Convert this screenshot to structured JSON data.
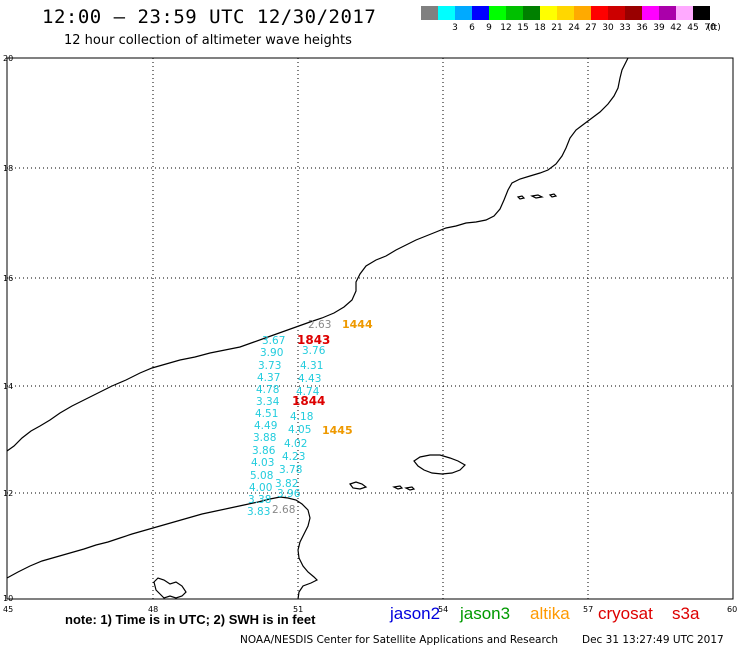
{
  "header": {
    "title": "12:00 — 23:59 UTC 12/30/2017",
    "subtitle": "12 hour collection of altimeter wave heights"
  },
  "legend": {
    "unit": "(ft)",
    "items": [
      {
        "label": "",
        "color": "#808080"
      },
      {
        "label": "3",
        "color": "#00ffff"
      },
      {
        "label": "6",
        "color": "#00aaff"
      },
      {
        "label": "9",
        "color": "#0000ff"
      },
      {
        "label": "12",
        "color": "#00ff00"
      },
      {
        "label": "15",
        "color": "#00c000"
      },
      {
        "label": "18",
        "color": "#008000"
      },
      {
        "label": "21",
        "color": "#ffff00"
      },
      {
        "label": "24",
        "color": "#ffd700"
      },
      {
        "label": "27",
        "color": "#ffaa00"
      },
      {
        "label": "30",
        "color": "#ff0000"
      },
      {
        "label": "33",
        "color": "#cc0000"
      },
      {
        "label": "36",
        "color": "#990000"
      },
      {
        "label": "39",
        "color": "#ff00ff"
      },
      {
        "label": "42",
        "color": "#aa00aa"
      },
      {
        "label": "45",
        "color": "#ffaaff"
      },
      {
        "label": "70",
        "color": "#000000"
      }
    ]
  },
  "axes": {
    "lat_labels": [
      "20",
      "18",
      "16",
      "14",
      "12",
      "10"
    ],
    "lon_labels": [
      "45",
      "48",
      "51",
      "54",
      "57",
      "60"
    ]
  },
  "colors": {
    "cyan": "#22ccdd",
    "gray": "#888888",
    "orange": "#ee9900",
    "red": "#dd0000",
    "jason2": "#0000dd",
    "jason3": "#009900",
    "altika": "#ff9900",
    "cryosat": "#dd0000",
    "s3a": "#dd0000"
  },
  "track_values": {
    "cyan_left": [
      "3.67",
      "3.90",
      "3.73",
      "4.37",
      "4.78",
      "3.34",
      "4.51",
      "4.49",
      "3.88",
      "3.86",
      "4.03",
      "5.08",
      "4.00",
      "3.38",
      "3.83"
    ],
    "cyan_right": [
      "3.76",
      "4.31",
      "4.43",
      "4.74",
      "4.18",
      "4.05",
      "4.02",
      "4.23",
      "3.78",
      "3.82",
      "3.96"
    ],
    "gray": [
      "2.63",
      "2.68"
    ]
  },
  "time_labels": {
    "orange": [
      "1444",
      "1445"
    ],
    "red": [
      "1843",
      "1844"
    ]
  },
  "footer": {
    "note": "note: 1) Time is in UTC; 2) SWH is in feet",
    "satellites": [
      "jason2",
      "jason3",
      "altika",
      "cryosat",
      "s3a"
    ],
    "credit": "NOAA/NESDIS Center for Satellite Applications and Research",
    "timestamp": "Dec 31 13:27:49 UTC 2017"
  }
}
